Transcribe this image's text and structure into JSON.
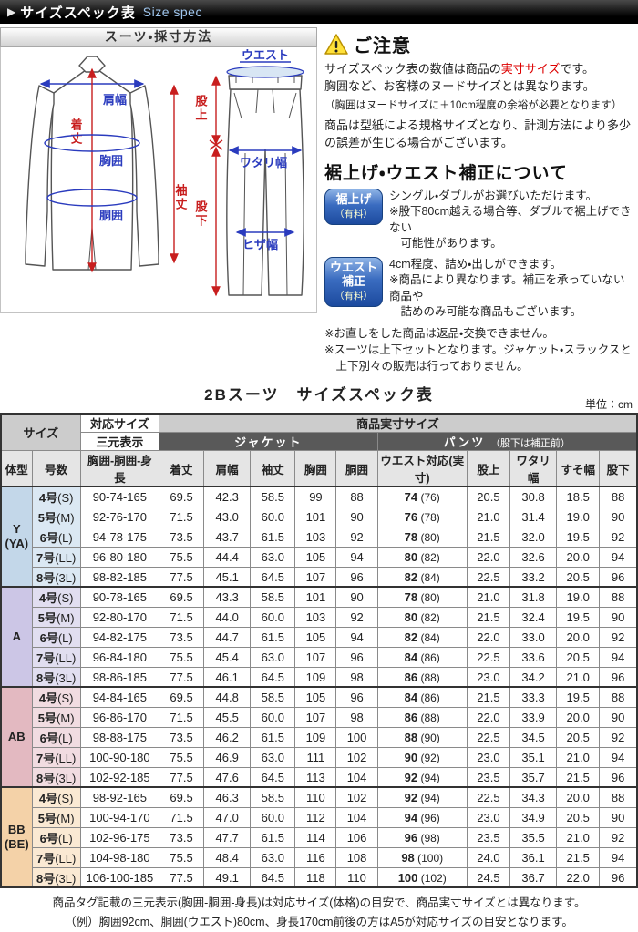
{
  "header": {
    "arrow": "▶",
    "title": "サイズスペック表",
    "subtitle": "Size spec"
  },
  "diagram": {
    "panel_title": "スーツ・採寸方法",
    "labels": {
      "katahaba": "肩幅",
      "kitake": "着丈",
      "kyoui": "胸囲",
      "doui": "胴囲",
      "sodetake": "袖丈",
      "waist": "ウエスト",
      "mataue": "股上",
      "watarihaba": "ワタリ幅",
      "matashita": "股下",
      "hizahaba": "ヒザ幅"
    }
  },
  "notice": {
    "title": "ご注意",
    "line1_pre": "サイズスペック表の数値は商品の",
    "line1_em": "実寸サイズ",
    "line1_post": "です。",
    "line2": "胸囲など、お客様のヌードサイズとは異なります。",
    "line3": "（胸囲はヌードサイズに＋10cm程度の余裕が必要となります）",
    "line4": "商品は型紙による規格サイズとなり、計測方法により多少の誤差が生じる場合がございます。"
  },
  "hemming": {
    "title": "裾上げ・ウエスト補正について",
    "items": [
      {
        "badge_name": "裾上げ",
        "badge_fee": "（有料）",
        "text": "シングル・ダブルがお選びいただけます。\n※股下80cm越える場合等、ダブルで裾上げできない\n　可能性があります。"
      },
      {
        "badge_name": "ウエスト補正",
        "badge_fee": "（有料）",
        "text": "4cm程度、詰め・出しができます。\n※商品により異なります。補正を承っていない商品や\n　詰めのみ可能な商品もございます。"
      }
    ],
    "notes": "※お直しをした商品は返品・交換できません。\n※スーツは上下セットとなります。ジャケット・スラックスと\n　上下別々の販売は行っておりません。"
  },
  "table": {
    "title": "2Bスーツ　サイズスペック表",
    "unit": "単位：cm",
    "headers": {
      "size": "サイズ",
      "taiou": "対応サイズ",
      "sangen": "三元表示",
      "jissun": "商品実寸サイズ",
      "jacket_group": "ジャケット",
      "pants_group": "パンツ",
      "pants_note": "（股下は補正前）",
      "cols": [
        "体型",
        "号数",
        "胸囲-胴囲-身長",
        "着丈",
        "肩幅",
        "袖丈",
        "胸囲",
        "胴囲",
        "ウエスト対応(実寸)",
        "股上",
        "ワタリ幅",
        "すそ幅",
        "股下"
      ]
    },
    "sections": [
      {
        "type": "Y\n(YA)",
        "color": "#c3d7e9",
        "light": "#dbe8f3",
        "rows": [
          [
            "4号",
            "(S)",
            "90-74-165",
            "69.5",
            "42.3",
            "58.5",
            "99",
            "88",
            "74",
            "(76)",
            "20.5",
            "30.8",
            "18.5",
            "88"
          ],
          [
            "5号",
            "(M)",
            "92-76-170",
            "71.5",
            "43.0",
            "60.0",
            "101",
            "90",
            "76",
            "(78)",
            "21.0",
            "31.4",
            "19.0",
            "90"
          ],
          [
            "6号",
            "(L)",
            "94-78-175",
            "73.5",
            "43.7",
            "61.5",
            "103",
            "92",
            "78",
            "(80)",
            "21.5",
            "32.0",
            "19.5",
            "92"
          ],
          [
            "7号",
            "(LL)",
            "96-80-180",
            "75.5",
            "44.4",
            "63.0",
            "105",
            "94",
            "80",
            "(82)",
            "22.0",
            "32.6",
            "20.0",
            "94"
          ],
          [
            "8号",
            "(3L)",
            "98-82-185",
            "77.5",
            "45.1",
            "64.5",
            "107",
            "96",
            "82",
            "(84)",
            "22.5",
            "33.2",
            "20.5",
            "96"
          ]
        ]
      },
      {
        "type": "A",
        "color": "#ccc6e6",
        "light": "#e1def0",
        "rows": [
          [
            "4号",
            "(S)",
            "90-78-165",
            "69.5",
            "43.3",
            "58.5",
            "101",
            "90",
            "78",
            "(80)",
            "21.0",
            "31.8",
            "19.0",
            "88"
          ],
          [
            "5号",
            "(M)",
            "92-80-170",
            "71.5",
            "44.0",
            "60.0",
            "103",
            "92",
            "80",
            "(82)",
            "21.5",
            "32.4",
            "19.5",
            "90"
          ],
          [
            "6号",
            "(L)",
            "94-82-175",
            "73.5",
            "44.7",
            "61.5",
            "105",
            "94",
            "82",
            "(84)",
            "22.0",
            "33.0",
            "20.0",
            "92"
          ],
          [
            "7号",
            "(LL)",
            "96-84-180",
            "75.5",
            "45.4",
            "63.0",
            "107",
            "96",
            "84",
            "(86)",
            "22.5",
            "33.6",
            "20.5",
            "94"
          ],
          [
            "8号",
            "(3L)",
            "98-86-185",
            "77.5",
            "46.1",
            "64.5",
            "109",
            "98",
            "86",
            "(88)",
            "23.0",
            "34.2",
            "21.0",
            "96"
          ]
        ]
      },
      {
        "type": "AB",
        "color": "#e3b9c1",
        "light": "#f1dce1",
        "rows": [
          [
            "4号",
            "(S)",
            "94-84-165",
            "69.5",
            "44.8",
            "58.5",
            "105",
            "96",
            "84",
            "(86)",
            "21.5",
            "33.3",
            "19.5",
            "88"
          ],
          [
            "5号",
            "(M)",
            "96-86-170",
            "71.5",
            "45.5",
            "60.0",
            "107",
            "98",
            "86",
            "(88)",
            "22.0",
            "33.9",
            "20.0",
            "90"
          ],
          [
            "6号",
            "(L)",
            "98-88-175",
            "73.5",
            "46.2",
            "61.5",
            "109",
            "100",
            "88",
            "(90)",
            "22.5",
            "34.5",
            "20.5",
            "92"
          ],
          [
            "7号",
            "(LL)",
            "100-90-180",
            "75.5",
            "46.9",
            "63.0",
            "111",
            "102",
            "90",
            "(92)",
            "23.0",
            "35.1",
            "21.0",
            "94"
          ],
          [
            "8号",
            "(3L)",
            "102-92-185",
            "77.5",
            "47.6",
            "64.5",
            "113",
            "104",
            "92",
            "(94)",
            "23.5",
            "35.7",
            "21.5",
            "96"
          ]
        ]
      },
      {
        "type": "BB\n(BE)",
        "color": "#f4d2a8",
        "light": "#fae9d3",
        "rows": [
          [
            "4号",
            "(S)",
            "98-92-165",
            "69.5",
            "46.3",
            "58.5",
            "110",
            "102",
            "92",
            "(94)",
            "22.5",
            "34.3",
            "20.0",
            "88"
          ],
          [
            "5号",
            "(M)",
            "100-94-170",
            "71.5",
            "47.0",
            "60.0",
            "112",
            "104",
            "94",
            "(96)",
            "23.0",
            "34.9",
            "20.5",
            "90"
          ],
          [
            "6号",
            "(L)",
            "102-96-175",
            "73.5",
            "47.7",
            "61.5",
            "114",
            "106",
            "96",
            "(98)",
            "23.5",
            "35.5",
            "21.0",
            "92"
          ],
          [
            "7号",
            "(LL)",
            "104-98-180",
            "75.5",
            "48.4",
            "63.0",
            "116",
            "108",
            "98",
            "(100)",
            "24.0",
            "36.1",
            "21.5",
            "94"
          ],
          [
            "8号",
            "(3L)",
            "106-100-185",
            "77.5",
            "49.1",
            "64.5",
            "118",
            "110",
            "100",
            "(102)",
            "24.5",
            "36.7",
            "22.0",
            "96"
          ]
        ]
      }
    ]
  },
  "footer": {
    "line1": "商品タグ記載の三元表示(胸囲-胴囲-身長)は対応サイズ(体格)の目安で、商品実寸サイズとは異なります。",
    "line2": "（例）胸囲92cm、胴囲(ウエスト)80cm、身長170cm前後の方はA5が対応サイズの目安となります。"
  },
  "colors": {
    "accent_red": "#dd0000",
    "label_blue": "#2a3bbe",
    "label_red": "#c81e1e",
    "badge_blue": "#1c4a9e",
    "header_dark": "#595959",
    "waist_col_bg": "#d9d9d9"
  }
}
